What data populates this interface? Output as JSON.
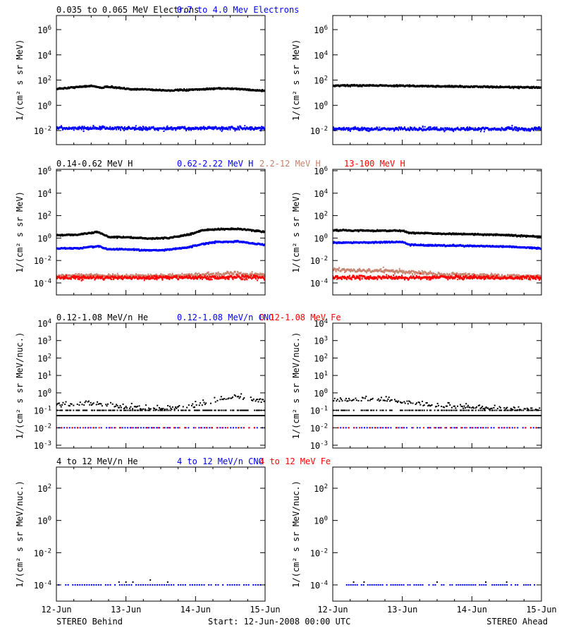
{
  "colors": {
    "axis": "#000000",
    "series_black": "#000000",
    "series_blue": "#0000ff",
    "series_tan": "#c8826e",
    "series_red": "#ff0000"
  },
  "footer": {
    "left": "STEREO Behind",
    "center": "Start: 12-Jun-2008 00:00 UTC",
    "right": "STEREO Ahead"
  },
  "x_axis": {
    "tick_labels": [
      "12-Jun",
      "13-Jun",
      "14-Jun",
      "15-Jun"
    ],
    "range_days": [
      0,
      3
    ]
  },
  "rows": [
    {
      "titles": [
        {
          "text": "0.035 to 0.065 MeV Electrons",
          "color": "#000000"
        },
        {
          "text": "0.7 to 4.0 Mev Electrons",
          "color": "#0000ff"
        }
      ],
      "ylabel": "1/(cm² s sr MeV)",
      "yticks": [
        {
          "base": "10",
          "exp": "6"
        },
        {
          "base": "10",
          "exp": "4"
        },
        {
          "base": "10",
          "exp": "2"
        },
        {
          "base": "10",
          "exp": "0"
        },
        {
          "base": "10",
          "exp": "-2"
        }
      ]
    },
    {
      "titles": [
        {
          "text": "0.14-0.62 MeV H",
          "color": "#000000"
        },
        {
          "text": "0.62-2.22 MeV H",
          "color": "#0000ff"
        },
        {
          "text": "2.2-12 MeV H",
          "color": "#c8826e"
        },
        {
          "text": "13-100 MeV H",
          "color": "#ff0000"
        }
      ],
      "ylabel": "1/(cm² s sr MeV)",
      "yticks": [
        {
          "base": "10",
          "exp": "6"
        },
        {
          "base": "10",
          "exp": "4"
        },
        {
          "base": "10",
          "exp": "2"
        },
        {
          "base": "10",
          "exp": "0"
        },
        {
          "base": "10",
          "exp": "-2"
        },
        {
          "base": "10",
          "exp": "-4"
        }
      ]
    },
    {
      "titles": [
        {
          "text": "0.12-1.08 MeV/n He",
          "color": "#000000"
        },
        {
          "text": "0.12-1.08 MeV/n CNO",
          "color": "#0000ff"
        },
        {
          "text": "0.12-1.08 MeV Fe",
          "color": "#ff0000"
        }
      ],
      "ylabel": "1/(cm² s sr MeV/nuc.)",
      "yticks": [
        {
          "base": "10",
          "exp": "4"
        },
        {
          "base": "10",
          "exp": "3"
        },
        {
          "base": "10",
          "exp": "2"
        },
        {
          "base": "10",
          "exp": "1"
        },
        {
          "base": "10",
          "exp": "0"
        },
        {
          "base": "10",
          "exp": "-1"
        },
        {
          "base": "10",
          "exp": "-2"
        },
        {
          "base": "10",
          "exp": "-3"
        }
      ]
    },
    {
      "titles": [
        {
          "text": "4 to 12 MeV/n He",
          "color": "#000000"
        },
        {
          "text": "4 to 12 MeV/n CNO",
          "color": "#0000ff"
        },
        {
          "text": "4 to 12 MeV Fe",
          "color": "#ff0000"
        }
      ],
      "ylabel": "1/(cm² s sr MeV/nuc.)",
      "yticks": [
        {
          "base": "10",
          "exp": "2"
        },
        {
          "base": "10",
          "exp": "0"
        },
        {
          "base": "10",
          "exp": "-2"
        },
        {
          "base": "10",
          "exp": "-4"
        }
      ]
    }
  ],
  "chart_data": [
    {
      "type": "scatter",
      "panel": "electrons",
      "spacecraft": "STEREO Behind",
      "y_scale": "log",
      "ylim": [
        0.001,
        10000000
      ],
      "xlim": [
        0,
        3
      ],
      "grid": false,
      "series": [
        {
          "name": "0.035 to 0.065 MeV Electrons",
          "color": "#000000",
          "x": [
            0,
            0.3,
            0.5,
            0.65,
            0.75,
            1.0,
            1.3,
            1.6,
            2.0,
            2.3,
            2.6,
            2.9,
            3.0
          ],
          "values": [
            20,
            28,
            35,
            25,
            30,
            20,
            18,
            15,
            17,
            22,
            20,
            15,
            14
          ]
        },
        {
          "name": "0.7 to 4.0 Mev Electrons",
          "color": "#0000ff",
          "x": [
            0,
            0.5,
            1.0,
            1.5,
            2.0,
            2.5,
            3.0
          ],
          "values": [
            0.015,
            0.016,
            0.015,
            0.014,
            0.015,
            0.015,
            0.014
          ]
        }
      ]
    },
    {
      "type": "scatter",
      "panel": "electrons",
      "spacecraft": "STEREO Ahead",
      "y_scale": "log",
      "ylim": [
        0.001,
        10000000
      ],
      "xlim": [
        0,
        3
      ],
      "grid": false,
      "series": [
        {
          "name": "0.035 to 0.065 MeV Electrons",
          "color": "#000000",
          "x": [
            0,
            0.5,
            1.0,
            1.5,
            2.0,
            2.5,
            3.0
          ],
          "values": [
            35,
            38,
            35,
            32,
            30,
            28,
            25
          ]
        },
        {
          "name": "0.7 to 4.0 Mev Electrons",
          "color": "#0000ff",
          "x": [
            0,
            0.5,
            1.0,
            1.5,
            2.0,
            2.5,
            3.0
          ],
          "values": [
            0.014,
            0.013,
            0.014,
            0.013,
            0.013,
            0.014,
            0.013
          ]
        }
      ]
    },
    {
      "type": "scatter",
      "panel": "protons",
      "spacecraft": "STEREO Behind",
      "y_scale": "log",
      "ylim": [
        3e-05,
        1000000
      ],
      "xlim": [
        0,
        3
      ],
      "grid": false,
      "series": [
        {
          "name": "0.14-0.62 MeV H",
          "color": "#000000",
          "x": [
            0,
            0.3,
            0.6,
            0.75,
            1.0,
            1.3,
            1.6,
            1.9,
            2.1,
            2.3,
            2.6,
            2.8,
            3.0
          ],
          "values": [
            1.8,
            2.0,
            3.5,
            1.2,
            1.2,
            0.9,
            1.0,
            2.0,
            5.0,
            6.0,
            6.5,
            5.0,
            3.5
          ]
        },
        {
          "name": "0.62-2.22 MeV H",
          "color": "#0000ff",
          "x": [
            0,
            0.3,
            0.6,
            0.75,
            1.0,
            1.3,
            1.6,
            1.9,
            2.1,
            2.3,
            2.6,
            2.8,
            3.0
          ],
          "values": [
            0.12,
            0.12,
            0.18,
            0.1,
            0.1,
            0.08,
            0.09,
            0.15,
            0.3,
            0.45,
            0.5,
            0.35,
            0.25
          ]
        },
        {
          "name": "2.2-12 MeV H",
          "color": "#c8826e",
          "x": [
            0,
            0.5,
            1.0,
            1.5,
            2.0,
            2.5,
            3.0
          ],
          "values": [
            0.0004,
            0.00045,
            0.0004,
            0.0004,
            0.0005,
            0.0007,
            0.0005
          ]
        },
        {
          "name": "13-100 MeV H",
          "color": "#ff0000",
          "x": [
            0,
            0.5,
            1.0,
            1.5,
            2.0,
            2.5,
            3.0
          ],
          "values": [
            0.0003,
            0.0003,
            0.0003,
            0.0003,
            0.0003,
            0.0003,
            0.0003
          ]
        }
      ]
    },
    {
      "type": "scatter",
      "panel": "protons",
      "spacecraft": "STEREO Ahead",
      "y_scale": "log",
      "ylim": [
        3e-05,
        1000000
      ],
      "xlim": [
        0,
        3
      ],
      "grid": false,
      "series": [
        {
          "name": "0.14-0.62 MeV H",
          "color": "#000000",
          "x": [
            0,
            0.5,
            1.0,
            1.1,
            1.5,
            2.0,
            2.5,
            3.0
          ],
          "values": [
            5,
            4.5,
            4.5,
            3,
            2.5,
            2.2,
            1.8,
            1.3
          ]
        },
        {
          "name": "0.62-2.22 MeV H",
          "color": "#0000ff",
          "x": [
            0,
            0.5,
            1.0,
            1.1,
            1.5,
            2.0,
            2.5,
            3.0
          ],
          "values": [
            0.4,
            0.4,
            0.45,
            0.25,
            0.22,
            0.2,
            0.17,
            0.12
          ]
        },
        {
          "name": "2.2-12 MeV H",
          "color": "#c8826e",
          "x": [
            0,
            0.5,
            1.0,
            1.5,
            2.0,
            2.5,
            3.0
          ],
          "values": [
            0.0015,
            0.0013,
            0.001,
            0.0006,
            0.0005,
            0.0004,
            0.0004
          ]
        },
        {
          "name": "13-100 MeV H",
          "color": "#ff0000",
          "x": [
            0,
            0.5,
            1.0,
            1.5,
            2.0,
            2.5,
            3.0
          ],
          "values": [
            0.0003,
            0.0003,
            0.0003,
            0.0003,
            0.0003,
            0.0003,
            0.0003
          ]
        }
      ]
    },
    {
      "type": "scatter",
      "panel": "heavy-ions-low",
      "spacecraft": "STEREO Behind",
      "y_scale": "log",
      "ylim": [
        0.0005,
        10000
      ],
      "xlim": [
        0,
        3
      ],
      "grid": false,
      "series": [
        {
          "name": "0.12-1.08 MeV/n He",
          "color": "#000000",
          "x": [
            0,
            0.5,
            1.0,
            1.5,
            2.0,
            2.3,
            2.6,
            2.9,
            3.0
          ],
          "values": [
            0.15,
            0.2,
            0.12,
            0.1,
            0.15,
            0.3,
            0.5,
            0.3,
            0.25
          ]
        },
        {
          "name": "0.12-1.08 MeV/n CNO",
          "color": "#0000ff",
          "x": [
            0,
            0.5,
            1.0,
            1.5,
            2.0,
            2.5,
            3.0
          ],
          "values": [
            0.01,
            0.01,
            0.01,
            0.01,
            0.01,
            0.01,
            0.01
          ]
        },
        {
          "name": "0.12-1.08 MeV Fe",
          "color": "#ff0000",
          "x": [
            0,
            0.5,
            1.0,
            1.5,
            2.0,
            2.5,
            3.0
          ],
          "values": [
            0.01,
            0.01,
            0.01,
            0.01,
            0.01,
            0.01,
            0.01
          ]
        }
      ]
    },
    {
      "type": "scatter",
      "panel": "heavy-ions-low",
      "spacecraft": "STEREO Ahead",
      "y_scale": "log",
      "ylim": [
        0.0005,
        10000
      ],
      "xlim": [
        0,
        3
      ],
      "grid": false,
      "series": [
        {
          "name": "0.12-1.08 MeV/n He",
          "color": "#000000",
          "x": [
            0,
            0.5,
            0.9,
            1.2,
            1.5,
            2.0,
            2.5,
            3.0
          ],
          "values": [
            0.3,
            0.35,
            0.3,
            0.2,
            0.15,
            0.12,
            0.1,
            0.1
          ]
        },
        {
          "name": "0.12-1.08 MeV/n CNO",
          "color": "#0000ff",
          "x": [
            0,
            0.5,
            1.0,
            1.5,
            2.0,
            2.5,
            3.0
          ],
          "values": [
            0.01,
            0.01,
            0.01,
            0.01,
            0.01,
            0.01,
            0.01
          ]
        },
        {
          "name": "0.12-1.08 MeV Fe",
          "color": "#ff0000",
          "x": [
            0,
            0.5,
            1.0,
            1.5,
            2.0,
            2.5,
            3.0
          ],
          "values": [
            0.01,
            0.01,
            0.01,
            0.01,
            0.01,
            0.01,
            0.01
          ]
        }
      ]
    },
    {
      "type": "scatter",
      "panel": "heavy-ions-high",
      "spacecraft": "STEREO Behind",
      "y_scale": "log",
      "ylim": [
        1e-06,
        10000
      ],
      "xlim": [
        0,
        3
      ],
      "grid": false,
      "series": [
        {
          "name": "4 to 12 MeV/n He",
          "color": "#000000",
          "x": [
            0.9,
            1.0,
            1.1,
            1.35,
            1.6
          ],
          "values": [
            0.00015,
            0.00015,
            0.00015,
            0.0002,
            0.00015
          ]
        },
        {
          "name": "4 to 12 MeV/n CNO",
          "color": "#0000ff",
          "x": [
            0,
            0.5,
            1.0,
            1.5,
            2.0,
            2.5,
            3.0
          ],
          "values": [
            0.0001,
            0.0001,
            0.0001,
            0.0001,
            0.0001,
            0.0001,
            0.0001
          ]
        },
        {
          "name": "4 to 12 MeV Fe",
          "color": "#ff0000",
          "x": [],
          "values": []
        }
      ]
    },
    {
      "type": "scatter",
      "panel": "heavy-ions-high",
      "spacecraft": "STEREO Ahead",
      "y_scale": "log",
      "ylim": [
        1e-06,
        10000
      ],
      "xlim": [
        0,
        3
      ],
      "grid": false,
      "series": [
        {
          "name": "4 to 12 MeV/n He",
          "color": "#000000",
          "x": [
            0.3,
            0.45,
            1.5,
            2.2,
            2.5
          ],
          "values": [
            0.00015,
            0.00015,
            0.00015,
            0.00015,
            0.00015
          ]
        },
        {
          "name": "4 to 12 MeV/n CNO",
          "color": "#0000ff",
          "x": [
            0.2,
            0.5,
            1.0,
            1.5,
            2.0,
            2.5,
            2.9
          ],
          "values": [
            0.0001,
            0.0001,
            0.0001,
            0.0001,
            0.0001,
            0.0001,
            0.0001
          ]
        },
        {
          "name": "4 to 12 MeV Fe",
          "color": "#ff0000",
          "x": [],
          "values": []
        }
      ]
    }
  ]
}
